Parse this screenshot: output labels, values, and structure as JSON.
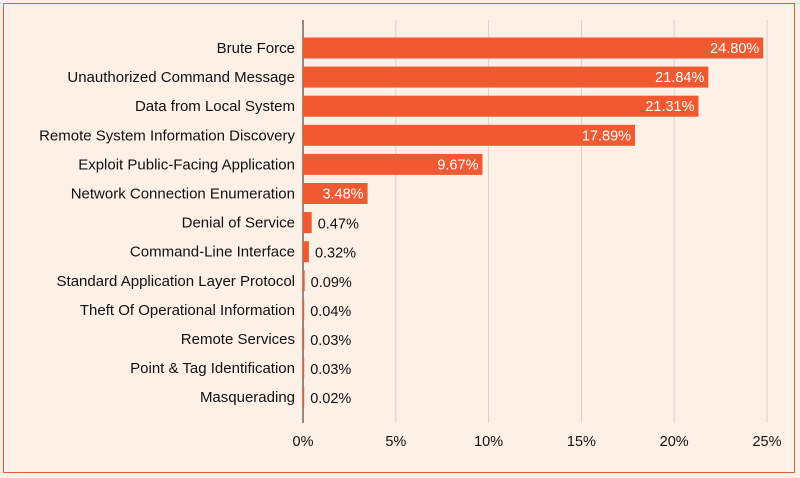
{
  "chart_data": {
    "type": "bar",
    "orientation": "horizontal",
    "categories": [
      "Brute Force",
      "Unauthorized Command Message",
      "Data from Local System",
      "Remote System Information Discovery",
      "Exploit Public-Facing Application",
      "Network Connection Enumeration",
      "Denial of Service",
      "Command-Line Interface",
      "Standard Application Layer Protocol",
      "Theft Of Operational Information",
      "Remote Services",
      "Point & Tag Identification",
      "Masquerading"
    ],
    "values": [
      24.8,
      21.84,
      21.31,
      17.89,
      9.67,
      3.48,
      0.47,
      0.32,
      0.09,
      0.04,
      0.03,
      0.03,
      0.02
    ],
    "value_labels": [
      "24.80%",
      "21.84%",
      "21.31%",
      "17.89%",
      "9.67%",
      "3.48%",
      "0.47%",
      "0.32%",
      "0.09%",
      "0.04%",
      "0.03%",
      "0.03%",
      "0.02%"
    ],
    "xlim": [
      0,
      25
    ],
    "xticks": [
      0,
      5,
      10,
      15,
      20,
      25
    ],
    "xtick_labels": [
      "0%",
      "5%",
      "10%",
      "15%",
      "20%",
      "25%"
    ],
    "title": "",
    "xlabel": "",
    "ylabel": "",
    "grid": true,
    "colors": {
      "bar": "#f15a31",
      "label_inside": "#ffffff",
      "label_outside": "#111111",
      "grid": "#d9d2cc"
    }
  }
}
